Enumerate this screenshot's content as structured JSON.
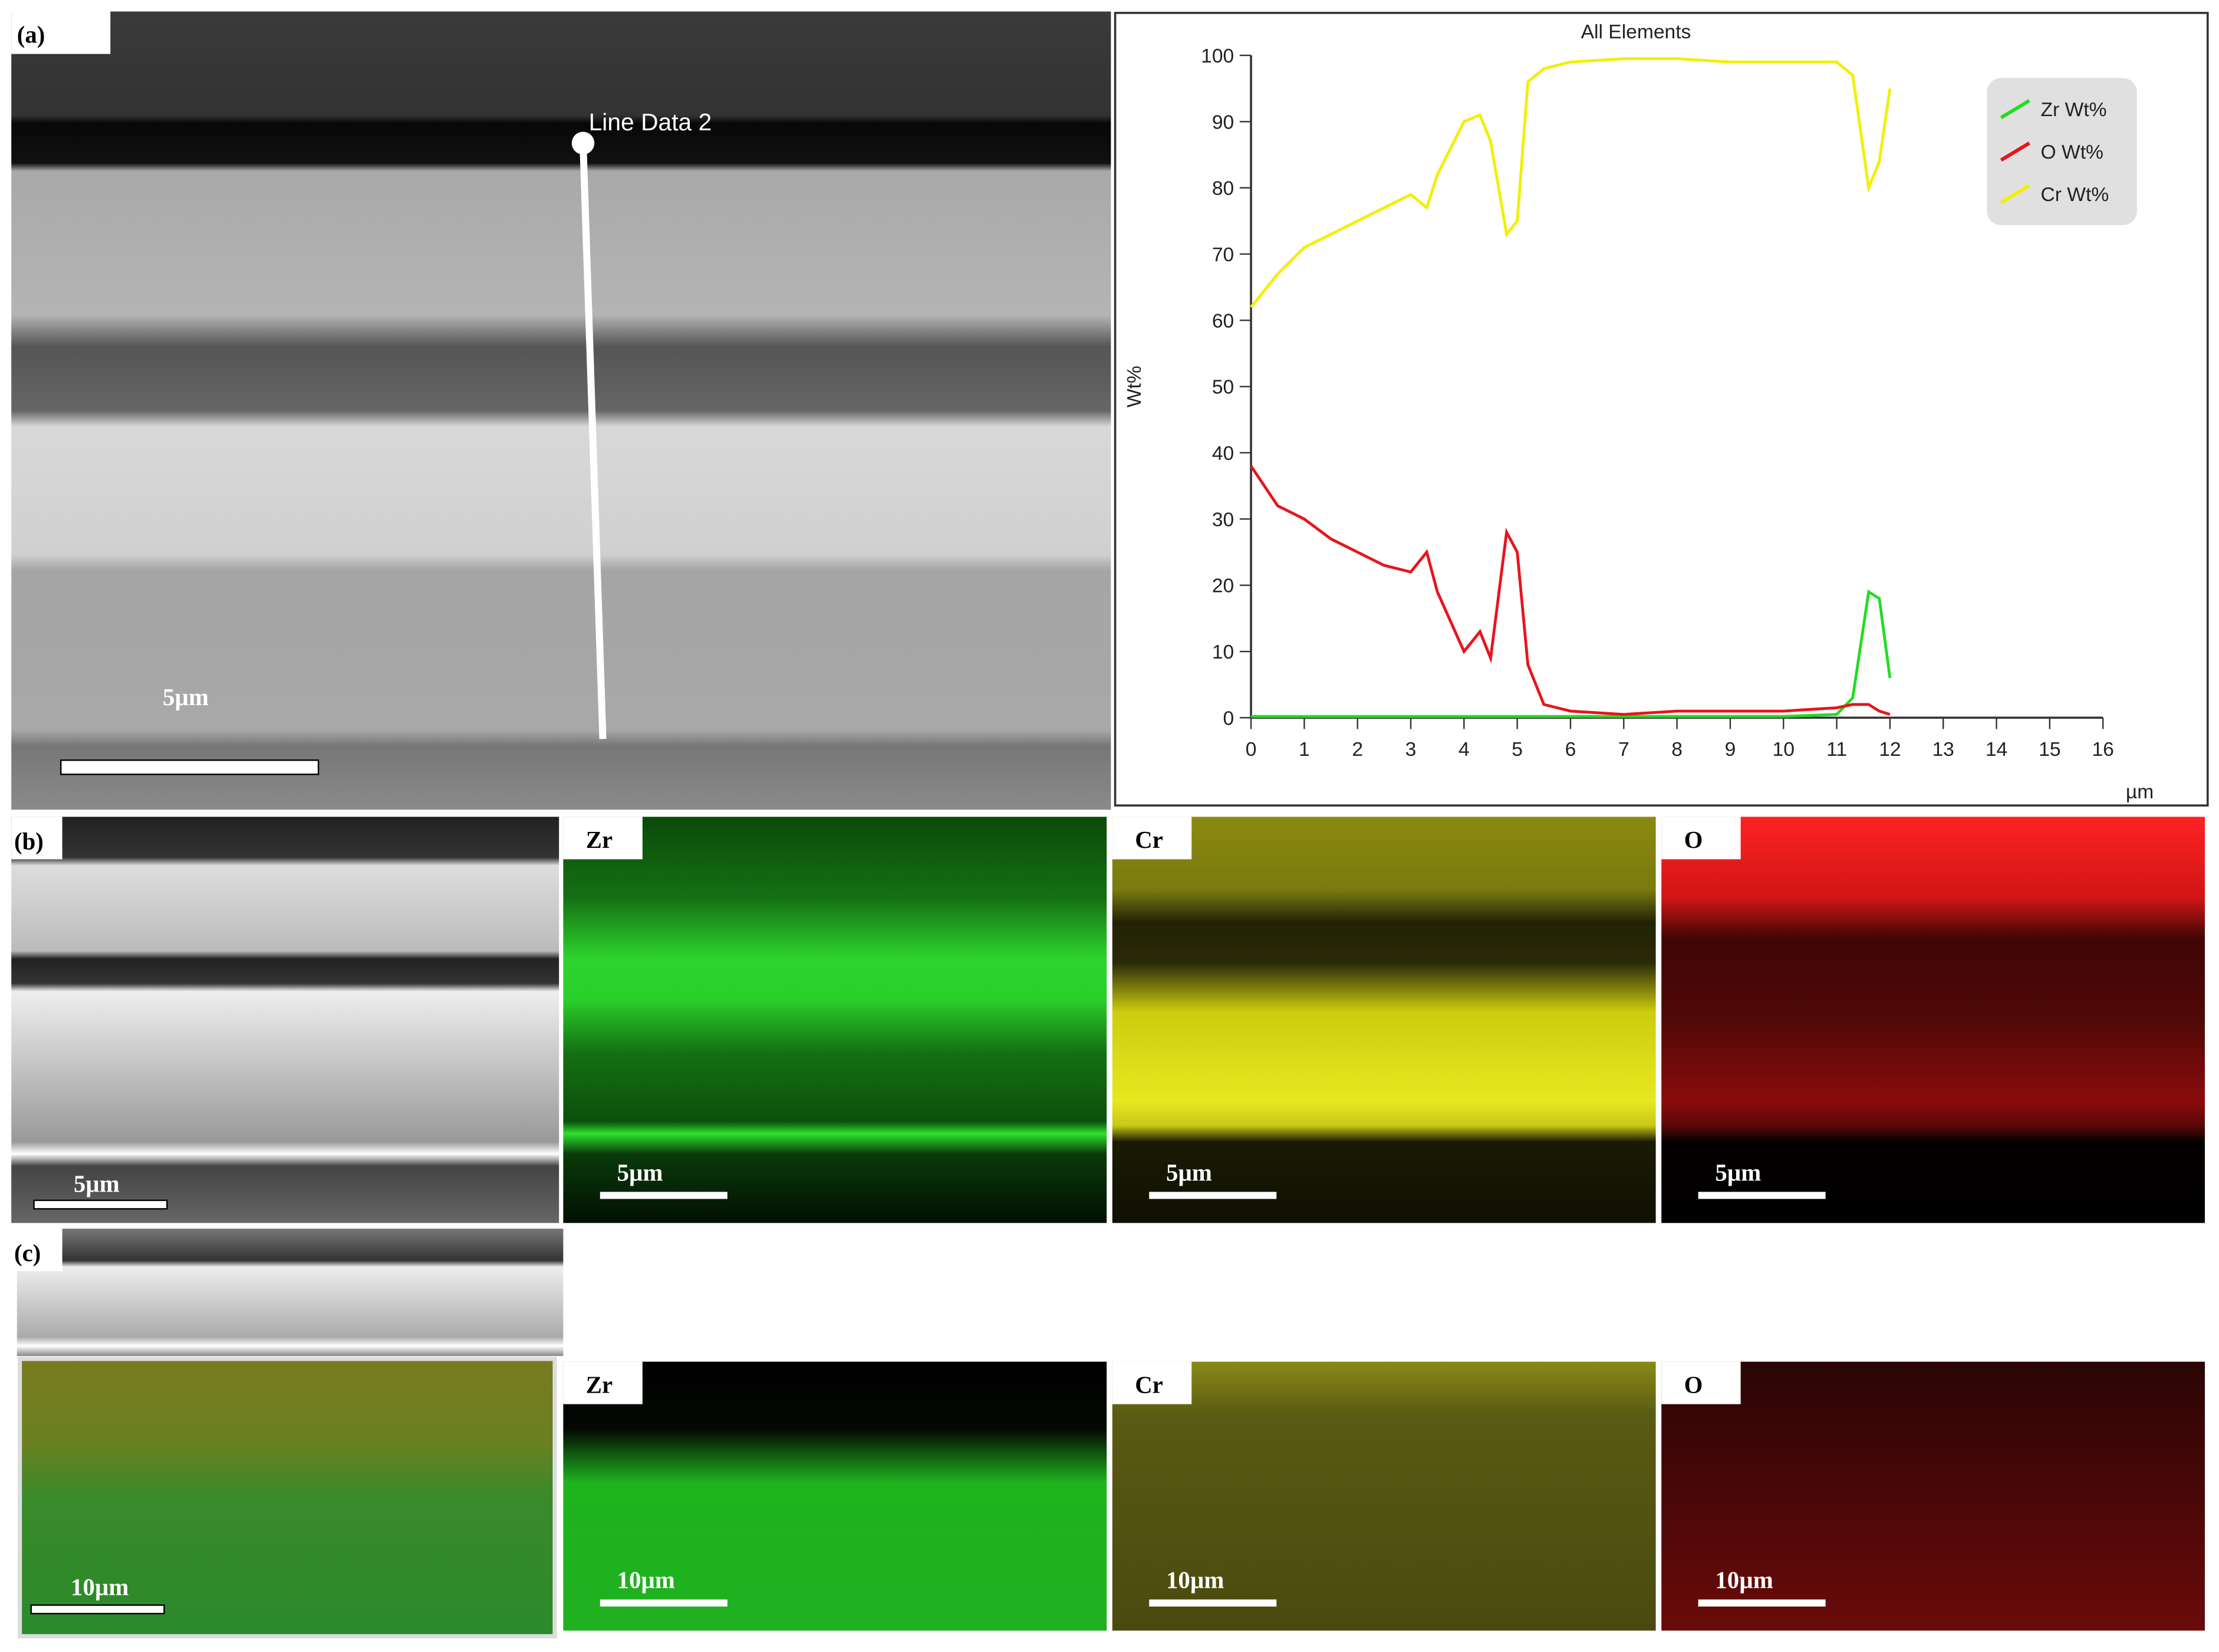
{
  "chart_data": {
    "type": "line",
    "title": "All Elements",
    "x_label": "µm",
    "y_label": "Wt%",
    "x": [
      0,
      0.5,
      1,
      1.5,
      2,
      2.5,
      3,
      3.3,
      3.5,
      4,
      4.3,
      4.5,
      4.8,
      5,
      5.2,
      5.5,
      6,
      7,
      8,
      9,
      10,
      11,
      11.3,
      11.6,
      11.8,
      12
    ],
    "series": [
      {
        "name": "Zr Wt%",
        "color": "#22dd22",
        "values": [
          0.2,
          0.2,
          0.2,
          0.2,
          0.2,
          0.2,
          0.2,
          0.2,
          0.2,
          0.2,
          0.2,
          0.2,
          0.2,
          0.2,
          0.2,
          0.2,
          0.2,
          0.2,
          0.2,
          0.2,
          0.2,
          0.5,
          3,
          19,
          18,
          6
        ]
      },
      {
        "name": "O Wt%",
        "color": "#e8141c",
        "values": [
          38,
          32,
          30,
          27,
          25,
          23,
          22,
          25,
          19,
          10,
          13,
          9,
          28,
          25,
          8,
          2,
          1,
          0.5,
          1,
          1,
          1,
          1.5,
          2,
          2,
          1,
          0.5
        ]
      },
      {
        "name": "Cr Wt%",
        "color": "#f0f000",
        "values": [
          62,
          67,
          71,
          73,
          75,
          77,
          79,
          77,
          82,
          90,
          91,
          87,
          73,
          75,
          96,
          98,
          99,
          99.5,
          99.5,
          99,
          99,
          99,
          97,
          80,
          84,
          95
        ]
      }
    ],
    "xlim": [
      0,
      16
    ],
    "xticks": [
      0,
      1,
      2,
      3,
      4,
      5,
      6,
      7,
      8,
      9,
      10,
      11,
      12,
      13,
      14,
      15,
      16
    ],
    "ylim": [
      0,
      100
    ],
    "yticks": [
      0,
      10,
      20,
      30,
      40,
      50,
      60,
      70,
      80,
      90,
      100
    ],
    "legend": "upper-right",
    "grid": false
  },
  "panels": {
    "a": {
      "label": "(a)",
      "line_label": "Line Data 2",
      "scale": "5µm"
    },
    "b": {
      "label": "(b)",
      "scale": "5µm",
      "maps": [
        {
          "element": "Zr",
          "scale": "5µm"
        },
        {
          "element": "Cr",
          "scale": "5µm"
        },
        {
          "element": "O",
          "scale": "5µm"
        }
      ]
    },
    "c": {
      "label": "(c)",
      "scale": "10µm",
      "maps": [
        {
          "element": "Zr",
          "scale": "10µm"
        },
        {
          "element": "Cr",
          "scale": "10µm"
        },
        {
          "element": "O",
          "scale": "10µm"
        }
      ]
    }
  }
}
